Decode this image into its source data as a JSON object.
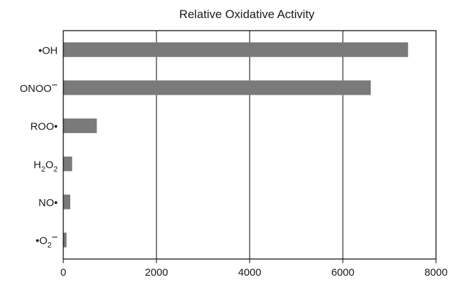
{
  "chart_data": {
    "type": "bar",
    "orientation": "horizontal",
    "title": "Relative Oxidative Activity",
    "xlabel": "",
    "ylabel": "",
    "xlim": [
      0,
      8000
    ],
    "xticks": [
      0,
      2000,
      4000,
      6000,
      8000
    ],
    "grid": "vertical lines at x ticks",
    "legend": "none",
    "bar_color": "#7a7a7a",
    "categories": [
      {
        "label": "•OH",
        "parts": [
          [
            "•OH",
            ""
          ]
        ]
      },
      {
        "label": "ONOO−",
        "parts": [
          [
            "ONOO",
            ""
          ],
          [
            "−",
            "sup"
          ]
        ]
      },
      {
        "label": "ROO•",
        "parts": [
          [
            "ROO•",
            ""
          ]
        ]
      },
      {
        "label": "H2O2",
        "parts": [
          [
            "H",
            ""
          ],
          [
            "2",
            "sub"
          ],
          [
            "O",
            ""
          ],
          [
            "2",
            "sub"
          ]
        ]
      },
      {
        "label": "NO•",
        "parts": [
          [
            "NO•",
            ""
          ]
        ]
      },
      {
        "label": "•O2−",
        "parts": [
          [
            "•O",
            ""
          ],
          [
            "2",
            "sub"
          ],
          [
            "−",
            "sup"
          ]
        ]
      }
    ],
    "values": [
      7400,
      6600,
      720,
      190,
      150,
      70
    ]
  }
}
